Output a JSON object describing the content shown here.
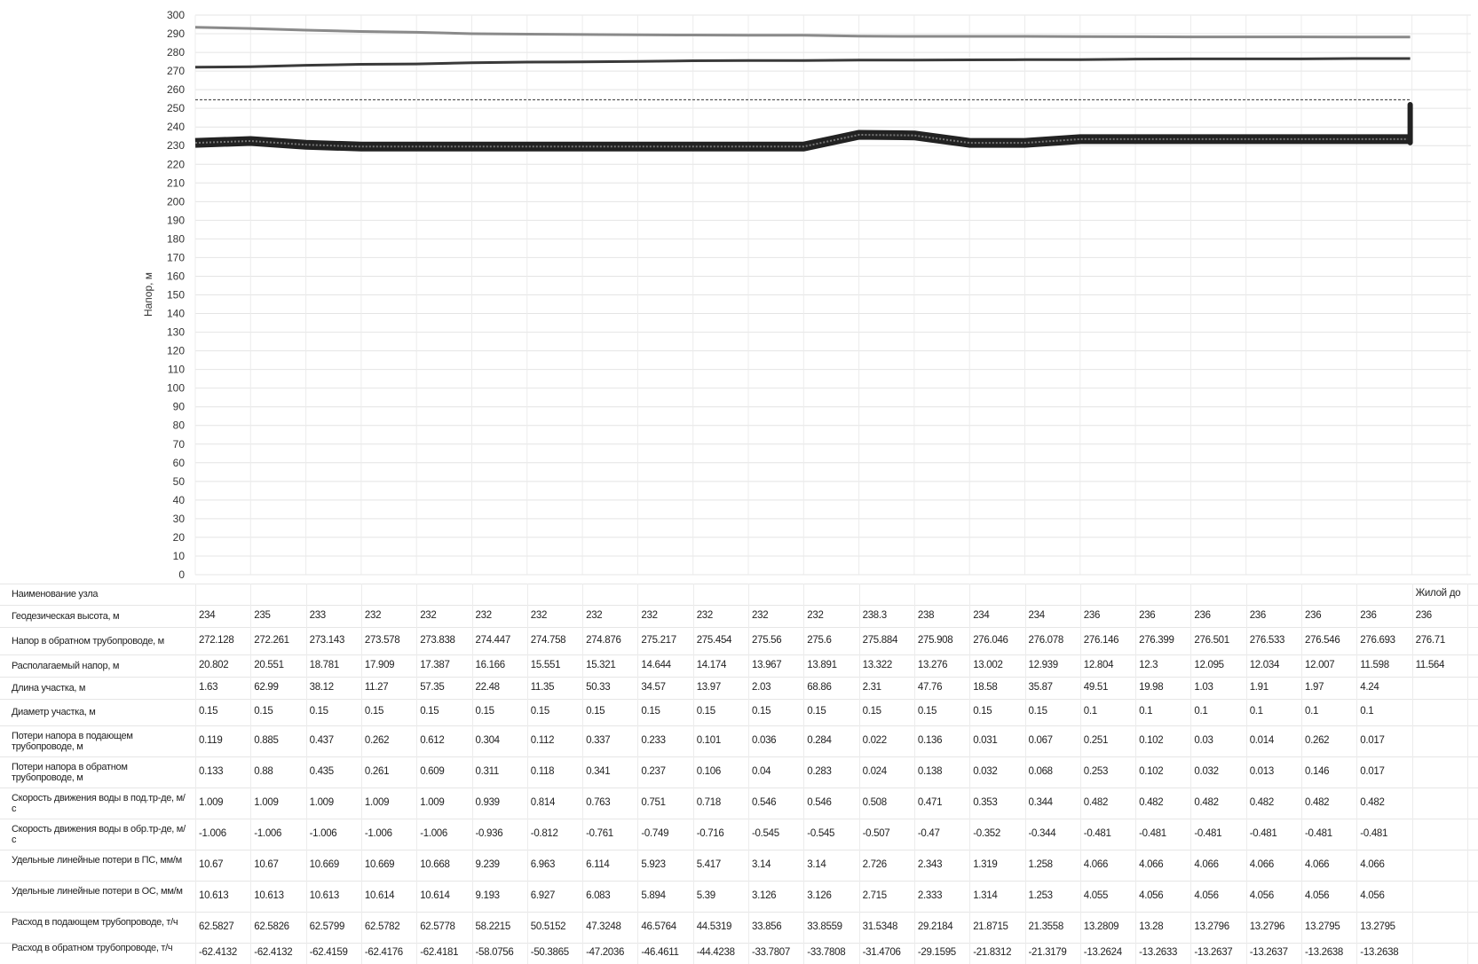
{
  "chart_data": {
    "type": "line",
    "ylabel": "Напор, м",
    "ylim": [
      0,
      300
    ],
    "yticks": [
      0,
      10,
      20,
      30,
      40,
      50,
      60,
      70,
      80,
      90,
      100,
      110,
      120,
      130,
      140,
      150,
      160,
      170,
      180,
      190,
      200,
      210,
      220,
      230,
      240,
      250,
      260,
      270,
      280,
      290,
      300
    ],
    "grid": true,
    "node_count": 23,
    "series": [
      {
        "color": "#8a8a8a",
        "values": [
          293.5,
          292.8,
          291.9,
          291.2,
          290.8,
          290.0,
          289.8,
          289.6,
          289.4,
          289.3,
          289.2,
          289.2,
          288.7,
          288.6,
          288.6,
          288.6,
          288.5,
          288.4,
          288.3,
          288.3,
          288.3,
          288.2,
          288.2
        ]
      },
      {
        "color": "#3a3a3a",
        "values": [
          272.1,
          272.3,
          273.1,
          273.6,
          273.8,
          274.4,
          274.8,
          274.9,
          275.2,
          275.5,
          275.6,
          275.6,
          275.9,
          275.9,
          276.0,
          276.1,
          276.1,
          276.4,
          276.5,
          276.5,
          276.5,
          276.7,
          276.7
        ]
      },
      {
        "color": "#555555",
        "dashed": true,
        "values": [
          254.6,
          254.6,
          254.6,
          254.6,
          254.6,
          254.6,
          254.6,
          254.6,
          254.6,
          254.6,
          254.6,
          254.6,
          254.6,
          254.6,
          254.6,
          254.6,
          254.6,
          254.6,
          254.6,
          254.6,
          254.6,
          254.6,
          254.6
        ]
      },
      {
        "color": "#222222",
        "thick": true,
        "values": [
          231.5,
          232.5,
          230.5,
          229.5,
          229.5,
          229.5,
          229.5,
          229.5,
          229.5,
          229.5,
          229.5,
          229.5,
          235.8,
          235.5,
          231.5,
          231.5,
          233.5,
          233.5,
          233.5,
          233.5,
          233.5,
          233.5,
          233.5
        ]
      }
    ]
  },
  "table": {
    "rows": [
      {
        "label": "Наименование узла",
        "values": [
          "",
          "",
          "",
          "",
          "",
          "",
          "",
          "",
          "",
          "",
          "",
          "",
          "",
          "",
          "",
          "",
          "",
          "",
          "",
          "",
          "",
          "",
          "Жилой до"
        ]
      },
      {
        "label": "Геодезическая высота, м",
        "values": [
          "234",
          "235",
          "233",
          "232",
          "232",
          "232",
          "232",
          "232",
          "232",
          "232",
          "232",
          "232",
          "238.3",
          "238",
          "234",
          "234",
          "236",
          "236",
          "236",
          "236",
          "236",
          "236",
          "236"
        ]
      },
      {
        "label": "Напор в обратном трубопроводе, м",
        "values": [
          "272.128",
          "272.261",
          "273.143",
          "273.578",
          "273.838",
          "274.447",
          "274.758",
          "274.876",
          "275.217",
          "275.454",
          "275.56",
          "275.6",
          "275.884",
          "275.908",
          "276.046",
          "276.078",
          "276.146",
          "276.399",
          "276.501",
          "276.533",
          "276.546",
          "276.693",
          "276.71"
        ]
      },
      {
        "label": "Располагаемый напор, м",
        "values": [
          "20.802",
          "20.551",
          "18.781",
          "17.909",
          "17.387",
          "16.166",
          "15.551",
          "15.321",
          "14.644",
          "14.174",
          "13.967",
          "13.891",
          "13.322",
          "13.276",
          "13.002",
          "12.939",
          "12.804",
          "12.3",
          "12.095",
          "12.034",
          "12.007",
          "11.598",
          "11.564"
        ]
      },
      {
        "label": "Длина участка, м",
        "values": [
          "1.63",
          "62.99",
          "38.12",
          "11.27",
          "57.35",
          "22.48",
          "11.35",
          "50.33",
          "34.57",
          "13.97",
          "2.03",
          "68.86",
          "2.31",
          "47.76",
          "18.58",
          "35.87",
          "49.51",
          "19.98",
          "1.03",
          "1.91",
          "1.97",
          "4.24",
          ""
        ]
      },
      {
        "label": "Диаметр участка, м",
        "values": [
          "0.15",
          "0.15",
          "0.15",
          "0.15",
          "0.15",
          "0.15",
          "0.15",
          "0.15",
          "0.15",
          "0.15",
          "0.15",
          "0.15",
          "0.15",
          "0.15",
          "0.15",
          "0.15",
          "0.1",
          "0.1",
          "0.1",
          "0.1",
          "0.1",
          "0.1",
          ""
        ]
      },
      {
        "label": "Потери напора в подающем трубопроводе, м",
        "values": [
          "0.119",
          "0.885",
          "0.437",
          "0.262",
          "0.612",
          "0.304",
          "0.112",
          "0.337",
          "0.233",
          "0.101",
          "0.036",
          "0.284",
          "0.022",
          "0.136",
          "0.031",
          "0.067",
          "0.251",
          "0.102",
          "0.03",
          "0.014",
          "0.262",
          "0.017",
          ""
        ]
      },
      {
        "label": "Потери напора в обратном трубопроводе, м",
        "values": [
          "0.133",
          "0.88",
          "0.435",
          "0.261",
          "0.609",
          "0.311",
          "0.118",
          "0.341",
          "0.237",
          "0.106",
          "0.04",
          "0.283",
          "0.024",
          "0.138",
          "0.032",
          "0.068",
          "0.253",
          "0.102",
          "0.032",
          "0.013",
          "0.146",
          "0.017",
          ""
        ]
      },
      {
        "label": "Скорость движения воды в под.тр-де, м/с",
        "values": [
          "1.009",
          "1.009",
          "1.009",
          "1.009",
          "1.009",
          "0.939",
          "0.814",
          "0.763",
          "0.751",
          "0.718",
          "0.546",
          "0.546",
          "0.508",
          "0.471",
          "0.353",
          "0.344",
          "0.482",
          "0.482",
          "0.482",
          "0.482",
          "0.482",
          "0.482",
          ""
        ]
      },
      {
        "label": "Скорость движения воды в обр.тр-де, м/с",
        "values": [
          "-1.006",
          "-1.006",
          "-1.006",
          "-1.006",
          "-1.006",
          "-0.936",
          "-0.812",
          "-0.761",
          "-0.749",
          "-0.716",
          "-0.545",
          "-0.545",
          "-0.507",
          "-0.47",
          "-0.352",
          "-0.344",
          "-0.481",
          "-0.481",
          "-0.481",
          "-0.481",
          "-0.481",
          "-0.481",
          ""
        ]
      },
      {
        "label": "Удельные линейные потери в ПС, мм/м",
        "values": [
          "10.67",
          "10.67",
          "10.669",
          "10.669",
          "10.668",
          "9.239",
          "6.963",
          "6.114",
          "5.923",
          "5.417",
          "3.14",
          "3.14",
          "2.726",
          "2.343",
          "1.319",
          "1.258",
          "4.066",
          "4.066",
          "4.066",
          "4.066",
          "4.066",
          "4.066",
          ""
        ]
      },
      {
        "label": "Удельные линейные потери в ОС, мм/м",
        "values": [
          "10.613",
          "10.613",
          "10.613",
          "10.614",
          "10.614",
          "9.193",
          "6.927",
          "6.083",
          "5.894",
          "5.39",
          "3.126",
          "3.126",
          "2.715",
          "2.333",
          "1.314",
          "1.253",
          "4.055",
          "4.056",
          "4.056",
          "4.056",
          "4.056",
          "4.056",
          ""
        ]
      },
      {
        "label": "Расход в подающем трубопроводе, т/ч",
        "values": [
          "62.5827",
          "62.5826",
          "62.5799",
          "62.5782",
          "62.5778",
          "58.2215",
          "50.5152",
          "47.3248",
          "46.5764",
          "44.5319",
          "33.856",
          "33.8559",
          "31.5348",
          "29.2184",
          "21.8715",
          "21.3558",
          "13.2809",
          "13.28",
          "13.2796",
          "13.2796",
          "13.2795",
          "13.2795",
          ""
        ]
      },
      {
        "label": "Расход в обратном трубопроводе, т/ч",
        "values": [
          "-62.4132",
          "-62.4132",
          "-62.4159",
          "-62.4176",
          "-62.4181",
          "-58.0756",
          "-50.3865",
          "-47.2036",
          "-46.4611",
          "-44.4238",
          "-33.7807",
          "-33.7808",
          "-31.4706",
          "-29.1595",
          "-21.8312",
          "-21.3179",
          "-13.2624",
          "-13.2633",
          "-13.2637",
          "-13.2637",
          "-13.2638",
          "-13.2638",
          ""
        ]
      }
    ]
  }
}
